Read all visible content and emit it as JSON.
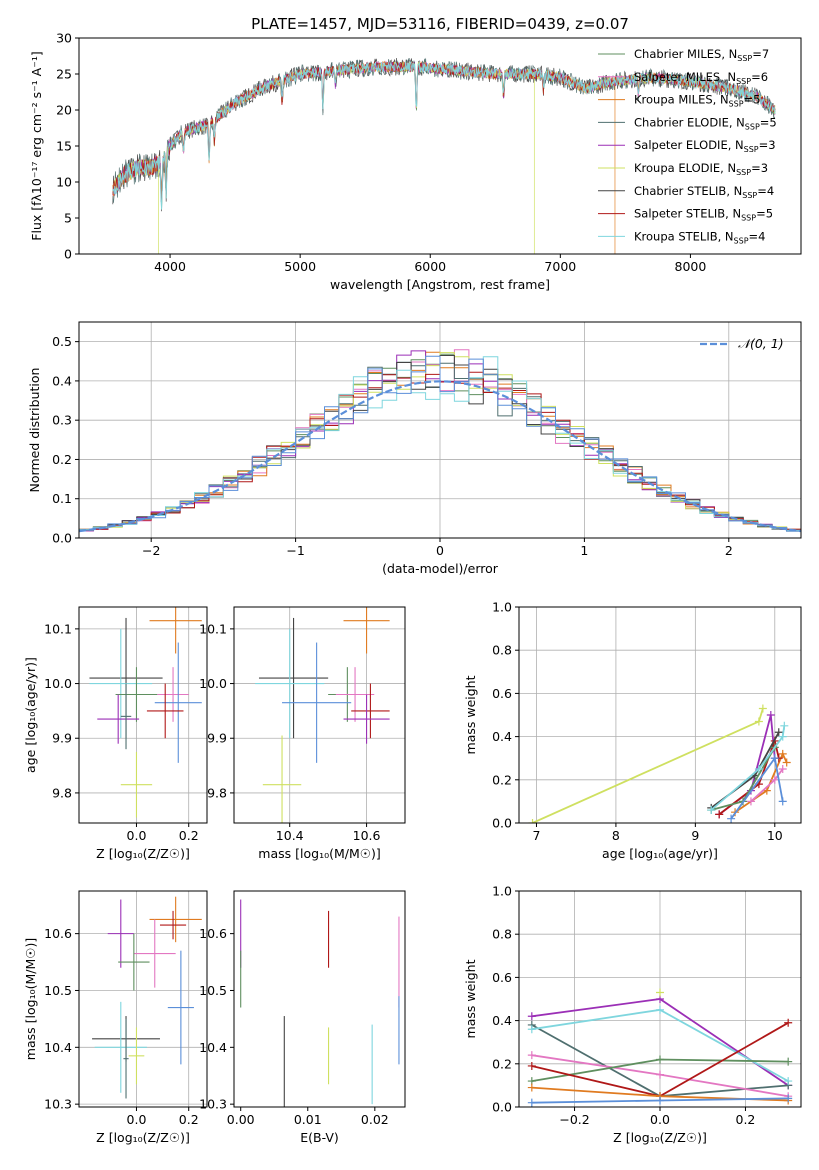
{
  "colors": {
    "chabrier_miles": "#5f8f5f",
    "salpeter_miles": "#e377c2",
    "kroupa_miles": "#e07b20",
    "chabrier_elodie": "#4f6f6f",
    "salpeter_elodie": "#9b2fb6",
    "kroupa_elodie": "#cfe060",
    "chabrier_stelib": "#444444",
    "salpeter_stelib": "#b01818",
    "kroupa_stelib": "#7fd6de",
    "gaussian": "#5b8fd9",
    "blue": "#5b8fd9"
  },
  "chart_data": [
    {
      "id": "spectrum",
      "type": "line",
      "title": "PLATE=1457, MJD=53116, FIBERID=0439, z=0.07",
      "xlabel": "wavelength [Angstrom, rest frame]",
      "ylabel": "Flux [fλ10⁻¹⁷ erg cm⁻² s⁻¹ A⁻¹]",
      "xlim": [
        3300,
        8850
      ],
      "ylim": [
        0,
        30
      ],
      "xticks": [
        4000,
        5000,
        6000,
        7000,
        8000
      ],
      "yticks": [
        0,
        5,
        10,
        15,
        20,
        25,
        30
      ],
      "grid": false,
      "legend_position": "right",
      "legend": [
        {
          "label": "Chabrier MILES, N_SSP=7",
          "text": "Chabrier MILES, N",
          "sub": "SSP",
          "suffix": "=7",
          "color_key": "chabrier_miles"
        },
        {
          "label": "Salpeter MILES, N_SSP=6",
          "text": "Salpeter MILES, N",
          "sub": "SSP",
          "suffix": "=6",
          "color_key": "salpeter_miles"
        },
        {
          "label": "Kroupa MILES, N_SSP=5",
          "text": "Kroupa MILES, N",
          "sub": "SSP",
          "suffix": "=5",
          "color_key": "kroupa_miles"
        },
        {
          "label": "Chabrier ELODIE, N_SSP=5",
          "text": "Chabrier ELODIE, N",
          "sub": "SSP",
          "suffix": "=5",
          "color_key": "chabrier_elodie"
        },
        {
          "label": "Salpeter ELODIE, N_SSP=3",
          "text": "Salpeter ELODIE, N",
          "sub": "SSP",
          "suffix": "=3",
          "color_key": "salpeter_elodie"
        },
        {
          "label": "Kroupa ELODIE, N_SSP=3",
          "text": "Kroupa ELODIE, N",
          "sub": "SSP",
          "suffix": "=3",
          "color_key": "kroupa_elodie"
        },
        {
          "label": "Chabrier STELIB, N_SSP=4",
          "text": "Chabrier STELIB, N",
          "sub": "SSP",
          "suffix": "=4",
          "color_key": "chabrier_stelib"
        },
        {
          "label": "Salpeter STELIB, N_SSP=5",
          "text": "Salpeter STELIB, N",
          "sub": "SSP",
          "suffix": "=5",
          "color_key": "salpeter_stelib"
        },
        {
          "label": "Kroupa STELIB, N_SSP=4",
          "text": "Kroupa STELIB, N",
          "sub": "SSP",
          "suffix": "=4",
          "color_key": "kroupa_stelib"
        }
      ],
      "continuum": [
        [
          3560,
          9
        ],
        [
          3650,
          11
        ],
        [
          3750,
          12
        ],
        [
          3850,
          12
        ],
        [
          3950,
          13
        ],
        [
          4000,
          15
        ],
        [
          4100,
          17
        ],
        [
          4300,
          18
        ],
        [
          4500,
          21
        ],
        [
          4700,
          23
        ],
        [
          5000,
          25
        ],
        [
          5300,
          25.5
        ],
        [
          5600,
          26
        ],
        [
          5900,
          26
        ],
        [
          6200,
          25.5
        ],
        [
          6500,
          25
        ],
        [
          6800,
          25
        ],
        [
          7000,
          24.5
        ],
        [
          7200,
          23
        ],
        [
          7400,
          24
        ],
        [
          7700,
          24.5
        ],
        [
          8000,
          24
        ],
        [
          8300,
          23
        ],
        [
          8500,
          22
        ],
        [
          8650,
          20
        ]
      ],
      "absorption_lines": [
        {
          "x": 3934,
          "depth": 6
        },
        {
          "x": 3969,
          "depth": 5
        },
        {
          "x": 4102,
          "depth": 3
        },
        {
          "x": 4300,
          "depth": 5
        },
        {
          "x": 4340,
          "depth": 3
        },
        {
          "x": 4861,
          "depth": 3
        },
        {
          "x": 5175,
          "depth": 5
        },
        {
          "x": 5270,
          "depth": 2
        },
        {
          "x": 5893,
          "depth": 6
        },
        {
          "x": 6563,
          "depth": 3
        },
        {
          "x": 6870,
          "depth": 2
        },
        {
          "x": 7600,
          "depth": 2
        }
      ],
      "dropouts": [
        {
          "x": 3910,
          "color_key": "kroupa_elodie"
        },
        {
          "x": 6800,
          "color_key": "kroupa_elodie"
        },
        {
          "x": 7420,
          "color_key": "kroupa_miles"
        }
      ]
    },
    {
      "id": "residuals",
      "type": "bar",
      "xlabel": "(data-model)/error",
      "ylabel": "Normed distribution",
      "xlim": [
        -2.5,
        2.5
      ],
      "ylim": [
        0,
        0.55
      ],
      "xticks": [
        -2,
        -1,
        0,
        1,
        2
      ],
      "xticklabels": [
        "−2",
        "−1",
        "0",
        "1",
        "2"
      ],
      "yticks": [
        0.0,
        0.1,
        0.2,
        0.3,
        0.4,
        0.5
      ],
      "grid": true,
      "bin_width": 0.1,
      "legend_position": "top-right",
      "gaussian": {
        "label": "𝒩(0, 1)",
        "mu": 0,
        "sigma": 1
      },
      "series_color_keys": [
        "chabrier_miles",
        "salpeter_miles",
        "kroupa_miles",
        "chabrier_elodie",
        "salpeter_elodie",
        "kroupa_elodie",
        "chabrier_stelib",
        "salpeter_stelib",
        "kroupa_stelib",
        "blue"
      ]
    },
    {
      "id": "age_vs_Z",
      "type": "scatter",
      "xlabel": "Z [log₁₀(Z/Z☉)]",
      "ylabel": "age  [log₁₀(age/yr)]",
      "xlim": [
        -0.22,
        0.27
      ],
      "ylim": [
        9.745,
        10.14
      ],
      "xticks": [
        0.0,
        0.2
      ],
      "xticklabels": [
        "0.0",
        "0.2"
      ],
      "yticks": [
        9.8,
        9.9,
        10.0,
        10.1
      ],
      "grid": true,
      "points": [
        {
          "x": 0.15,
          "xerr": 0.1,
          "y": 10.115,
          "yerr": 0.06,
          "color_key": "kroupa_miles"
        },
        {
          "x": -0.04,
          "xerr": 0.14,
          "y": 10.01,
          "yerr": 0.11,
          "color_key": "chabrier_stelib"
        },
        {
          "x": -0.06,
          "xerr": 0.12,
          "y": 10.0,
          "yerr": 0.1,
          "color_key": "kroupa_stelib"
        },
        {
          "x": 0.0,
          "xerr": 0.08,
          "y": 9.98,
          "yerr": 0.05,
          "color_key": "chabrier_miles"
        },
        {
          "x": 0.14,
          "xerr": 0.06,
          "y": 9.98,
          "yerr": 0.05,
          "color_key": "salpeter_miles"
        },
        {
          "x": 0.16,
          "xerr": 0.09,
          "y": 9.965,
          "yerr": 0.11,
          "color_key": "blue"
        },
        {
          "x": 0.11,
          "xerr": 0.07,
          "y": 9.95,
          "yerr": 0.05,
          "color_key": "salpeter_stelib"
        },
        {
          "x": -0.07,
          "xerr": 0.08,
          "y": 9.935,
          "yerr": 0.045,
          "color_key": "salpeter_elodie"
        },
        {
          "x": -0.04,
          "xerr": 0.02,
          "y": 9.94,
          "yerr": 0.06,
          "color_key": "chabrier_elodie"
        },
        {
          "x": 0.0,
          "xerr": 0.06,
          "y": 9.815,
          "yerr": 0.06,
          "color_key": "kroupa_elodie"
        }
      ]
    },
    {
      "id": "age_vs_mass",
      "type": "scatter",
      "xlabel": "mass [log₁₀(M/M☉)]",
      "ylabel": "",
      "xlim": [
        10.255,
        10.7
      ],
      "ylim": [
        9.745,
        10.14
      ],
      "xticks": [
        10.4,
        10.6
      ],
      "xticklabels": [
        "10.4",
        "10.6"
      ],
      "yticks": [
        9.8,
        9.9,
        10.0,
        10.1
      ],
      "grid": true,
      "points": [
        {
          "x": 10.6,
          "xerr": 0.06,
          "y": 10.115,
          "yerr": 0.06,
          "color_key": "kroupa_miles"
        },
        {
          "x": 10.41,
          "xerr": 0.09,
          "y": 10.01,
          "yerr": 0.11,
          "color_key": "chabrier_stelib"
        },
        {
          "x": 10.4,
          "xerr": 0.09,
          "y": 10.0,
          "yerr": 0.1,
          "color_key": "kroupa_stelib"
        },
        {
          "x": 10.55,
          "xerr": 0.05,
          "y": 9.98,
          "yerr": 0.05,
          "color_key": "chabrier_miles"
        },
        {
          "x": 10.57,
          "xerr": 0.05,
          "y": 9.98,
          "yerr": 0.05,
          "color_key": "salpeter_miles"
        },
        {
          "x": 10.47,
          "xerr": 0.09,
          "y": 9.965,
          "yerr": 0.11,
          "color_key": "blue"
        },
        {
          "x": 10.61,
          "xerr": 0.05,
          "y": 9.95,
          "yerr": 0.05,
          "color_key": "salpeter_stelib"
        },
        {
          "x": 10.6,
          "xerr": 0.06,
          "y": 9.935,
          "yerr": 0.045,
          "color_key": "salpeter_elodie"
        },
        {
          "x": 10.38,
          "xerr": 0.05,
          "y": 9.815,
          "yerr": 0.09,
          "color_key": "kroupa_elodie"
        }
      ]
    },
    {
      "id": "weight_vs_age",
      "type": "line",
      "xlabel": "age  [log₁₀(age/yr)]",
      "ylabel": "mass weight",
      "xlim": [
        6.78,
        10.33
      ],
      "ylim": [
        0,
        1
      ],
      "xticks": [
        7,
        8,
        9,
        10
      ],
      "yticks": [
        0.0,
        0.2,
        0.4,
        0.6,
        0.8,
        1.0
      ],
      "grid": true,
      "series": [
        {
          "color_key": "kroupa_elodie",
          "points": [
            [
              6.95,
              0.0
            ],
            [
              9.8,
              0.47
            ],
            [
              9.85,
              0.53
            ]
          ]
        },
        {
          "color_key": "salpeter_elodie",
          "points": [
            [
              9.3,
              0.04
            ],
            [
              9.7,
              0.15
            ],
            [
              9.95,
              0.5
            ],
            [
              10.0,
              0.3
            ]
          ]
        },
        {
          "color_key": "kroupa_miles",
          "points": [
            [
              9.5,
              0.05
            ],
            [
              9.9,
              0.15
            ],
            [
              10.1,
              0.32
            ],
            [
              10.15,
              0.28
            ]
          ]
        },
        {
          "color_key": "salpeter_stelib",
          "points": [
            [
              9.3,
              0.04
            ],
            [
              9.8,
              0.18
            ],
            [
              10.0,
              0.38
            ],
            [
              10.05,
              0.3
            ]
          ]
        },
        {
          "color_key": "salpeter_miles",
          "points": [
            [
              9.7,
              0.1
            ],
            [
              10.0,
              0.2
            ],
            [
              10.1,
              0.25
            ]
          ]
        },
        {
          "color_key": "chabrier_stelib",
          "points": [
            [
              9.2,
              0.07
            ],
            [
              9.75,
              0.22
            ],
            [
              10.05,
              0.42
            ]
          ]
        },
        {
          "color_key": "chabrier_miles",
          "points": [
            [
              9.2,
              0.06
            ],
            [
              9.6,
              0.1
            ],
            [
              10.0,
              0.35
            ]
          ]
        },
        {
          "color_key": "blue",
          "points": [
            [
              9.45,
              0.02
            ],
            [
              10.0,
              0.3
            ],
            [
              10.1,
              0.1
            ]
          ]
        },
        {
          "color_key": "kroupa_stelib",
          "points": [
            [
              9.2,
              0.06
            ],
            [
              9.8,
              0.25
            ],
            [
              10.1,
              0.4
            ],
            [
              10.12,
              0.45
            ]
          ]
        }
      ]
    },
    {
      "id": "mass_vs_Z",
      "type": "scatter",
      "xlabel": "Z [log₁₀(Z/Z☉)]",
      "ylabel": "mass [log₁₀(M/M☉)]",
      "xlim": [
        -0.22,
        0.27
      ],
      "ylim": [
        10.295,
        10.675
      ],
      "xticks": [
        0.0,
        0.2
      ],
      "xticklabels": [
        "0.0",
        "0.2"
      ],
      "yticks": [
        10.3,
        10.4,
        10.5,
        10.6
      ],
      "grid": true,
      "points": [
        {
          "x": 0.15,
          "xerr": 0.1,
          "y": 10.625,
          "yerr": 0.04,
          "color_key": "kroupa_miles"
        },
        {
          "x": 0.14,
          "xerr": 0.05,
          "y": 10.615,
          "yerr": 0.025,
          "color_key": "salpeter_stelib"
        },
        {
          "x": -0.06,
          "xerr": 0.05,
          "y": 10.6,
          "yerr": 0.06,
          "color_key": "salpeter_elodie"
        },
        {
          "x": 0.07,
          "xerr": 0.08,
          "y": 10.565,
          "yerr": 0.06,
          "color_key": "salpeter_miles"
        },
        {
          "x": -0.01,
          "xerr": 0.06,
          "y": 10.55,
          "yerr": 0.05,
          "color_key": "chabrier_miles"
        },
        {
          "x": 0.17,
          "xerr": 0.05,
          "y": 10.47,
          "yerr": 0.1,
          "color_key": "blue"
        },
        {
          "x": -0.04,
          "xerr": 0.13,
          "y": 10.415,
          "yerr": 0.04,
          "color_key": "chabrier_stelib"
        },
        {
          "x": -0.06,
          "xerr": 0.1,
          "y": 10.4,
          "yerr": 0.08,
          "color_key": "kroupa_stelib"
        },
        {
          "x": 0.0,
          "xerr": 0.03,
          "y": 10.385,
          "yerr": 0.05,
          "color_key": "kroupa_elodie"
        },
        {
          "x": -0.04,
          "xerr": 0.01,
          "y": 10.38,
          "yerr": 0.07,
          "color_key": "chabrier_elodie"
        }
      ]
    },
    {
      "id": "mass_vs_ebv",
      "type": "scatter",
      "xlabel": "E(B-V)",
      "ylabel": "",
      "xlim": [
        -0.001,
        0.0245
      ],
      "ylim": [
        10.295,
        10.675
      ],
      "xticks": [
        0.0,
        0.01,
        0.02
      ],
      "xticklabels": [
        "0.00",
        "0.01",
        "0.02"
      ],
      "yticks": [
        10.3,
        10.4,
        10.5,
        10.6
      ],
      "grid": false,
      "points": [
        {
          "x": 0.0,
          "y": 10.6,
          "yerr": 0.06,
          "color_key": "salpeter_elodie"
        },
        {
          "x": 0.0,
          "y": 10.52,
          "yerr": 0.05,
          "color_key": "chabrier_miles"
        },
        {
          "x": 0.0065,
          "y": 10.37,
          "yerr": 0.085,
          "color_key": "chabrier_stelib"
        },
        {
          "x": 0.0131,
          "y": 10.59,
          "yerr": 0.05,
          "color_key": "salpeter_stelib"
        },
        {
          "x": 0.0131,
          "y": 10.385,
          "yerr": 0.05,
          "color_key": "kroupa_elodie"
        },
        {
          "x": 0.0196,
          "y": 10.37,
          "yerr": 0.07,
          "color_key": "kroupa_stelib"
        },
        {
          "x": 0.0236,
          "y": 10.55,
          "yerr": 0.08,
          "color_key": "salpeter_miles"
        },
        {
          "x": 0.0236,
          "y": 10.43,
          "yerr": 0.06,
          "color_key": "blue"
        }
      ]
    },
    {
      "id": "weight_vs_Z",
      "type": "line",
      "xlabel": "Z [log₁₀(Z/Z☉)]",
      "ylabel": "mass weight",
      "xlim": [
        -0.33,
        0.33
      ],
      "ylim": [
        0,
        1
      ],
      "xticks": [
        -0.2,
        0.0,
        0.2
      ],
      "xticklabels": [
        "−0.2",
        "0.0",
        "0.2"
      ],
      "yticks": [
        0.0,
        0.2,
        0.4,
        0.6,
        0.8,
        1.0
      ],
      "grid": true,
      "series": [
        {
          "color_key": "salpeter_elodie",
          "points": [
            [
              -0.3,
              0.42
            ],
            [
              0.0,
              0.5
            ],
            [
              0.3,
              0.1
            ]
          ]
        },
        {
          "color_key": "chabrier_elodie",
          "points": [
            [
              -0.3,
              0.38
            ],
            [
              0.0,
              0.05
            ],
            [
              0.3,
              0.1
            ]
          ]
        },
        {
          "color_key": "kroupa_stelib",
          "points": [
            [
              -0.3,
              0.36
            ],
            [
              0.0,
              0.45
            ],
            [
              0.3,
              0.12
            ]
          ]
        },
        {
          "color_key": "salpeter_miles",
          "points": [
            [
              -0.3,
              0.24
            ],
            [
              0.0,
              0.15
            ],
            [
              0.3,
              0.05
            ]
          ]
        },
        {
          "color_key": "chabrier_miles",
          "points": [
            [
              -0.3,
              0.12
            ],
            [
              0.0,
              0.22
            ],
            [
              0.3,
              0.21
            ]
          ]
        },
        {
          "color_key": "salpeter_stelib",
          "points": [
            [
              -0.3,
              0.19
            ],
            [
              0.0,
              0.05
            ],
            [
              0.3,
              0.39
            ]
          ]
        },
        {
          "color_key": "kroupa_miles",
          "points": [
            [
              -0.3,
              0.09
            ],
            [
              0.0,
              0.05
            ],
            [
              0.3,
              0.03
            ]
          ]
        },
        {
          "color_key": "blue",
          "points": [
            [
              -0.3,
              0.02
            ],
            [
              0.0,
              0.03
            ],
            [
              0.3,
              0.04
            ]
          ]
        },
        {
          "color_key": "kroupa_elodie",
          "points": [
            [
              0.0,
              0.53
            ]
          ]
        }
      ]
    }
  ]
}
